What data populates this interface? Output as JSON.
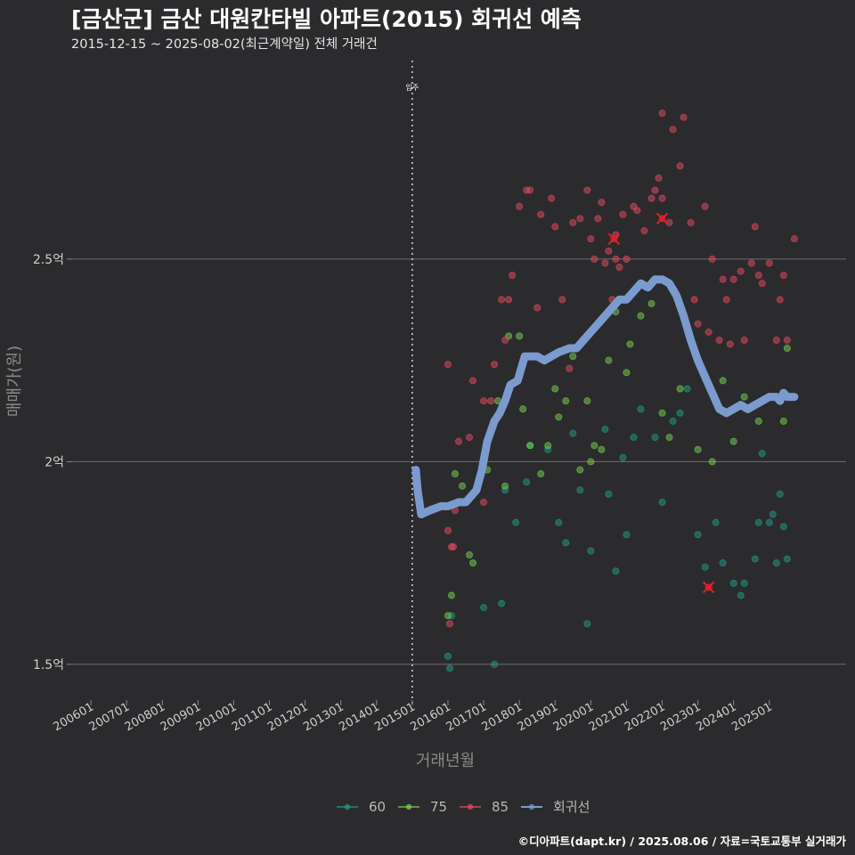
{
  "header": {
    "title": "[금산군] 금산 대원칸타빌 아파트(2015) 회귀선 예측",
    "subtitle": "2015-12-15 ~ 2025-08-02(최근계약일) 전체 거래건"
  },
  "footer": {
    "credit": "©디아파트(dapt.kr) / 2025.08.06 / 자료=국토교통부 실거래가"
  },
  "chart_data": {
    "type": "scatter",
    "xlabel": "거래년월",
    "ylabel": "매매가(원)",
    "x_ticks": [
      "200601",
      "200701",
      "200801",
      "200901",
      "201001",
      "201101",
      "201201",
      "201301",
      "201401",
      "201501",
      "201601",
      "201701",
      "201801",
      "201901",
      "202001",
      "202101",
      "202201",
      "202301",
      "202401",
      "202501"
    ],
    "y_ticks": [
      {
        "value": 1.5,
        "label": "1.5억"
      },
      {
        "value": 2.0,
        "label": "2억"
      },
      {
        "value": 2.5,
        "label": "2.5억"
      }
    ],
    "xlim": [
      2005.45,
      2027.15
    ],
    "ylim": [
      1.425,
      2.99
    ],
    "grid": "horizontal",
    "legend_position": "bottom",
    "annotation": {
      "x": 2015.0,
      "label": "입주"
    },
    "colors": {
      "background": "#2b2b2d",
      "60": "#1f9e89",
      "75": "#7ad151",
      "85": "#e84a5f",
      "regression": "#7b9bcf"
    },
    "legend": [
      {
        "key": "60",
        "label": "60"
      },
      {
        "key": "75",
        "label": "75"
      },
      {
        "key": "85",
        "label": "85"
      },
      {
        "key": "regression",
        "label": "회귀선"
      }
    ],
    "series": [
      {
        "name": "60",
        "points": [
          [
            2016.0,
            1.52
          ],
          [
            2016.05,
            1.49
          ],
          [
            2016.1,
            1.62
          ],
          [
            2017.0,
            1.64
          ],
          [
            2017.3,
            1.5
          ],
          [
            2017.5,
            1.65
          ],
          [
            2017.6,
            1.93
          ],
          [
            2017.9,
            1.85
          ],
          [
            2018.2,
            1.95
          ],
          [
            2018.3,
            2.04
          ],
          [
            2018.8,
            2.03
          ],
          [
            2019.1,
            1.85
          ],
          [
            2019.3,
            1.8
          ],
          [
            2019.5,
            2.07
          ],
          [
            2019.7,
            1.93
          ],
          [
            2019.9,
            1.6
          ],
          [
            2020.0,
            1.78
          ],
          [
            2020.4,
            2.08
          ],
          [
            2020.5,
            1.92
          ],
          [
            2020.7,
            1.73
          ],
          [
            2020.9,
            2.01
          ],
          [
            2021.0,
            1.82
          ],
          [
            2021.2,
            2.06
          ],
          [
            2021.4,
            2.13
          ],
          [
            2021.8,
            2.06
          ],
          [
            2022.0,
            1.9
          ],
          [
            2022.3,
            2.1
          ],
          [
            2022.5,
            2.12
          ],
          [
            2022.7,
            2.18
          ],
          [
            2023.0,
            1.82
          ],
          [
            2023.2,
            1.74
          ],
          [
            2023.5,
            1.85
          ],
          [
            2023.7,
            1.75
          ],
          [
            2024.0,
            1.7
          ],
          [
            2024.2,
            1.67
          ],
          [
            2024.3,
            1.7
          ],
          [
            2024.6,
            1.76
          ],
          [
            2024.7,
            1.85
          ],
          [
            2024.8,
            2.02
          ],
          [
            2025.0,
            1.85
          ],
          [
            2025.1,
            1.87
          ],
          [
            2025.2,
            1.75
          ],
          [
            2025.3,
            1.92
          ],
          [
            2025.4,
            1.84
          ],
          [
            2025.5,
            1.76
          ]
        ]
      },
      {
        "name": "75",
        "points": [
          [
            2016.0,
            1.62
          ],
          [
            2016.1,
            1.67
          ],
          [
            2016.2,
            1.97
          ],
          [
            2016.4,
            1.94
          ],
          [
            2016.6,
            1.77
          ],
          [
            2016.7,
            1.75
          ],
          [
            2017.1,
            1.98
          ],
          [
            2017.4,
            2.15
          ],
          [
            2017.6,
            1.94
          ],
          [
            2017.7,
            2.31
          ],
          [
            2018.0,
            2.31
          ],
          [
            2018.1,
            2.13
          ],
          [
            2018.3,
            2.04
          ],
          [
            2018.6,
            1.97
          ],
          [
            2018.8,
            2.04
          ],
          [
            2019.0,
            2.18
          ],
          [
            2019.1,
            2.11
          ],
          [
            2019.3,
            2.15
          ],
          [
            2019.5,
            2.26
          ],
          [
            2019.7,
            1.98
          ],
          [
            2019.9,
            2.15
          ],
          [
            2020.0,
            2.0
          ],
          [
            2020.1,
            2.04
          ],
          [
            2020.3,
            2.03
          ],
          [
            2020.5,
            2.25
          ],
          [
            2020.7,
            2.37
          ],
          [
            2021.0,
            2.22
          ],
          [
            2021.1,
            2.29
          ],
          [
            2021.4,
            2.36
          ],
          [
            2021.7,
            2.39
          ],
          [
            2022.0,
            2.12
          ],
          [
            2022.2,
            2.06
          ],
          [
            2022.5,
            2.18
          ],
          [
            2023.0,
            2.03
          ],
          [
            2023.4,
            2.0
          ],
          [
            2023.7,
            2.2
          ],
          [
            2024.0,
            2.05
          ],
          [
            2024.3,
            2.16
          ],
          [
            2024.7,
            2.1
          ],
          [
            2025.4,
            2.1
          ],
          [
            2025.5,
            2.28
          ]
        ]
      },
      {
        "name": "85",
        "points": [
          [
            2016.0,
            1.83
          ],
          [
            2016.05,
            1.6
          ],
          [
            2016.1,
            1.79
          ],
          [
            2016.15,
            1.79
          ],
          [
            2016.2,
            1.88
          ],
          [
            2016.0,
            2.24
          ],
          [
            2016.3,
            2.05
          ],
          [
            2016.6,
            2.06
          ],
          [
            2016.7,
            2.2
          ],
          [
            2017.0,
            1.9
          ],
          [
            2017.0,
            2.15
          ],
          [
            2017.2,
            2.15
          ],
          [
            2017.3,
            2.24
          ],
          [
            2017.5,
            2.4
          ],
          [
            2017.6,
            2.3
          ],
          [
            2017.7,
            2.4
          ],
          [
            2017.8,
            2.46
          ],
          [
            2018.0,
            2.63
          ],
          [
            2018.2,
            2.67
          ],
          [
            2018.3,
            2.67
          ],
          [
            2018.5,
            2.38
          ],
          [
            2018.6,
            2.61
          ],
          [
            2018.9,
            2.65
          ],
          [
            2019.0,
            2.58
          ],
          [
            2019.2,
            2.4
          ],
          [
            2019.4,
            2.23
          ],
          [
            2019.5,
            2.59
          ],
          [
            2019.7,
            2.6
          ],
          [
            2019.9,
            2.67
          ],
          [
            2020.0,
            2.55
          ],
          [
            2020.1,
            2.5
          ],
          [
            2020.2,
            2.6
          ],
          [
            2020.3,
            2.64
          ],
          [
            2020.4,
            2.49
          ],
          [
            2020.5,
            2.52
          ],
          [
            2020.6,
            2.4
          ],
          [
            2020.7,
            2.56
          ],
          [
            2020.8,
            2.48
          ],
          [
            2020.9,
            2.61
          ],
          [
            2021.0,
            2.5
          ],
          [
            2021.2,
            2.63
          ],
          [
            2021.3,
            2.62
          ],
          [
            2021.5,
            2.57
          ],
          [
            2021.7,
            2.65
          ],
          [
            2021.8,
            2.67
          ],
          [
            2021.9,
            2.7
          ],
          [
            2022.0,
            2.65
          ],
          [
            2022.2,
            2.59
          ],
          [
            2022.3,
            2.82
          ],
          [
            2022.5,
            2.73
          ],
          [
            2022.6,
            2.85
          ],
          [
            2022.8,
            2.59
          ],
          [
            2022.9,
            2.4
          ],
          [
            2023.0,
            2.34
          ],
          [
            2023.2,
            2.63
          ],
          [
            2023.3,
            2.32
          ],
          [
            2023.4,
            2.5
          ],
          [
            2023.6,
            2.3
          ],
          [
            2023.7,
            2.45
          ],
          [
            2023.8,
            2.4
          ],
          [
            2023.9,
            2.29
          ],
          [
            2024.0,
            2.45
          ],
          [
            2024.2,
            2.47
          ],
          [
            2024.3,
            2.3
          ],
          [
            2024.5,
            2.49
          ],
          [
            2024.6,
            2.58
          ],
          [
            2024.7,
            2.46
          ],
          [
            2024.8,
            2.44
          ],
          [
            2025.0,
            2.49
          ],
          [
            2025.2,
            2.3
          ],
          [
            2025.3,
            2.4
          ],
          [
            2025.4,
            2.46
          ],
          [
            2025.5,
            2.3
          ],
          [
            2025.7,
            2.55
          ],
          [
            2020.7,
            2.5
          ],
          [
            2021.3,
            2.43
          ],
          [
            2022.0,
            2.86
          ]
        ]
      }
    ],
    "highlighted_points": [
      {
        "x": 2020.65,
        "y": 2.55,
        "series": "85"
      },
      {
        "x": 2022.0,
        "y": 2.6,
        "series": "85"
      },
      {
        "x": 2023.3,
        "y": 1.69,
        "series": "85"
      }
    ],
    "regression": {
      "name": "회귀선",
      "points": [
        [
          2015.1,
          1.98
        ],
        [
          2015.15,
          1.93
        ],
        [
          2015.25,
          1.87
        ],
        [
          2015.5,
          1.88
        ],
        [
          2015.8,
          1.89
        ],
        [
          2016.0,
          1.89
        ],
        [
          2016.3,
          1.9
        ],
        [
          2016.5,
          1.9
        ],
        [
          2016.7,
          1.92
        ],
        [
          2016.8,
          1.93
        ],
        [
          2016.95,
          1.98
        ],
        [
          2017.1,
          2.05
        ],
        [
          2017.3,
          2.1
        ],
        [
          2017.45,
          2.12
        ],
        [
          2017.6,
          2.15
        ],
        [
          2017.75,
          2.19
        ],
        [
          2017.95,
          2.2
        ],
        [
          2018.05,
          2.23
        ],
        [
          2018.15,
          2.26
        ],
        [
          2018.3,
          2.26
        ],
        [
          2018.5,
          2.26
        ],
        [
          2018.7,
          2.25
        ],
        [
          2018.9,
          2.26
        ],
        [
          2019.1,
          2.27
        ],
        [
          2019.4,
          2.28
        ],
        [
          2019.6,
          2.28
        ],
        [
          2019.8,
          2.3
        ],
        [
          2020.0,
          2.32
        ],
        [
          2020.2,
          2.34
        ],
        [
          2020.4,
          2.36
        ],
        [
          2020.6,
          2.38
        ],
        [
          2020.8,
          2.4
        ],
        [
          2021.0,
          2.4
        ],
        [
          2021.2,
          2.42
        ],
        [
          2021.4,
          2.44
        ],
        [
          2021.6,
          2.43
        ],
        [
          2021.8,
          2.45
        ],
        [
          2022.0,
          2.45
        ],
        [
          2022.2,
          2.44
        ],
        [
          2022.4,
          2.41
        ],
        [
          2022.6,
          2.36
        ],
        [
          2022.8,
          2.3
        ],
        [
          2023.0,
          2.25
        ],
        [
          2023.2,
          2.21
        ],
        [
          2023.4,
          2.17
        ],
        [
          2023.6,
          2.13
        ],
        [
          2023.8,
          2.12
        ],
        [
          2024.0,
          2.13
        ],
        [
          2024.2,
          2.14
        ],
        [
          2024.4,
          2.13
        ],
        [
          2024.6,
          2.14
        ],
        [
          2024.8,
          2.15
        ],
        [
          2025.0,
          2.16
        ],
        [
          2025.2,
          2.16
        ],
        [
          2025.3,
          2.15
        ],
        [
          2025.4,
          2.17
        ],
        [
          2025.5,
          2.16
        ],
        [
          2025.7,
          2.16
        ]
      ]
    }
  }
}
